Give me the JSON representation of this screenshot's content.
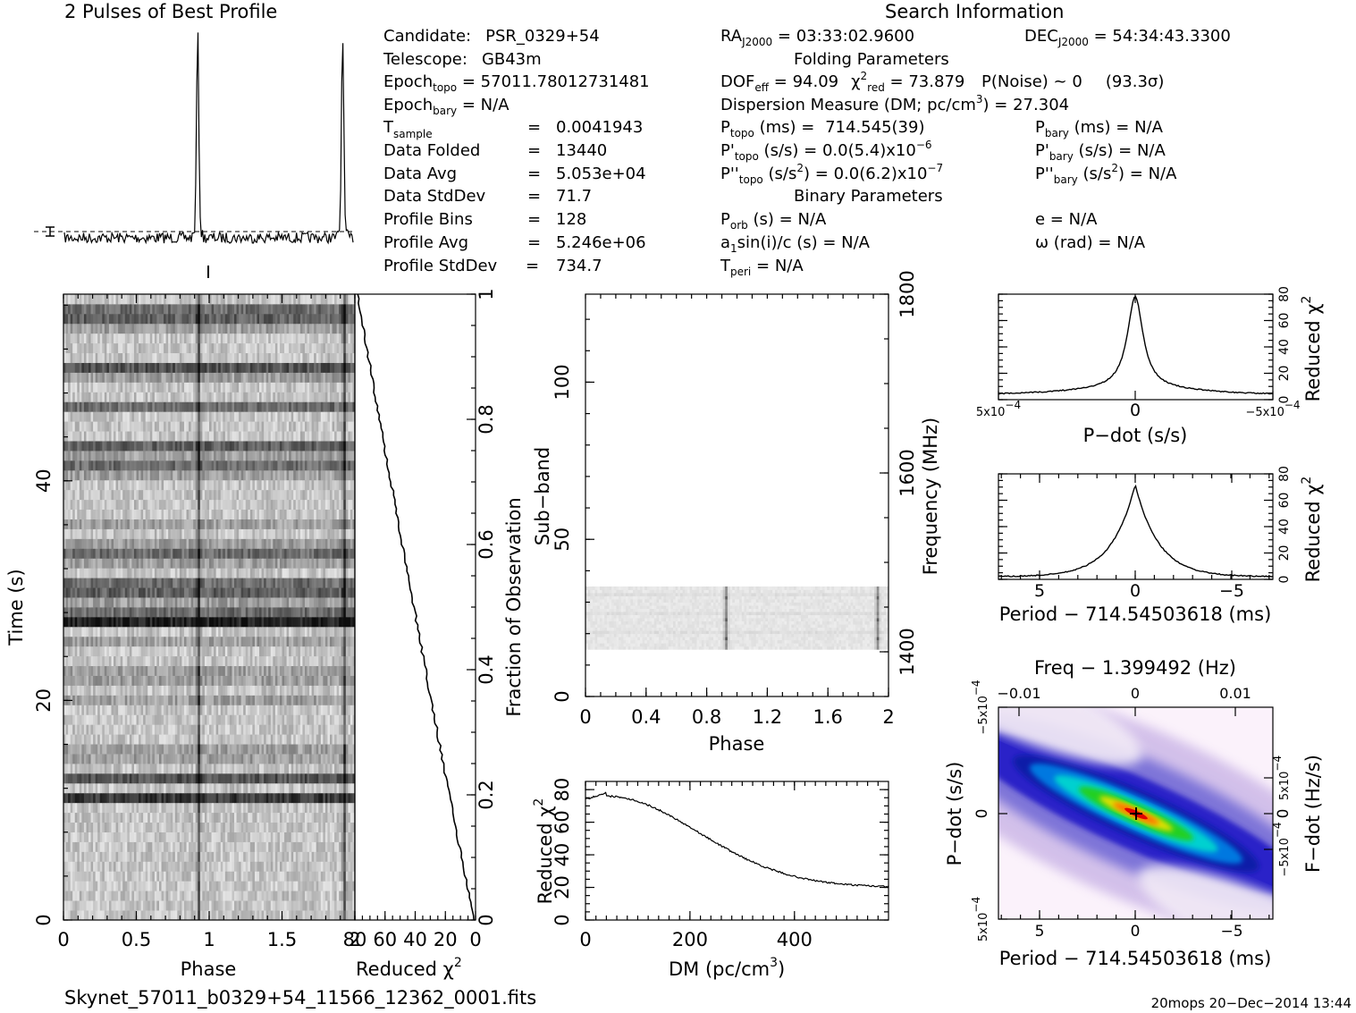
{
  "profile": {
    "title": "2 Pulses of Best Profile"
  },
  "info": {
    "title": "Search Information",
    "candidate_label": "Candidate:",
    "candidate": "PSR_0329+54",
    "telescope_label": "Telescope:",
    "telescope": "GB43m",
    "epoch_topo": "57011.78012731481",
    "epoch_bary": "N/A",
    "t_sample": "0.0041943",
    "data_folded": "13440",
    "data_avg": "5.053e+04",
    "data_stddev": "71.7",
    "profile_bins": "128",
    "profile_avg": "5.246e+06",
    "profile_stddev": "734.7",
    "ra": "03:33:02.9600",
    "dec": "54:34:43.3300",
    "folding_title": "Folding Parameters",
    "dof_eff": "94.09",
    "chi2_red": "73.879",
    "p_noise": "0",
    "sigma": "(93.3σ)",
    "dm": "27.304",
    "p_topo": "714.545(39)",
    "pd_topo": "0.0(5.4)x10",
    "pd_topo_exp": "−6",
    "pdd_topo": "0.0(6.2)x10",
    "pdd_topo_exp": "−7",
    "p_bary": "N/A",
    "pd_bary": "N/A",
    "pdd_bary": "N/A",
    "binary_title": "Binary Parameters",
    "p_orb": "N/A",
    "a1sini": "N/A",
    "t_peri": "N/A",
    "e": "N/A",
    "omega": "N/A"
  },
  "time_phase": {
    "xlabel": "Phase",
    "ylabel": "Time (s)",
    "xticks": [
      "0",
      "0.5",
      "1",
      "1.5",
      "2"
    ],
    "yticks": [
      "0",
      "20",
      "40"
    ],
    "xlim": [
      0,
      2
    ],
    "ylim": [
      0,
      57
    ],
    "pulse_phases": [
      0.92,
      1.92
    ]
  },
  "chi2_fraction": {
    "xlabel": "Reduced χ",
    "ylabel": "Fraction of Observation",
    "xticks": [
      "80",
      "60",
      "40",
      "20",
      "0"
    ],
    "yticks": [
      "0",
      "0.2",
      "0.4",
      "0.6",
      "0.8",
      "1"
    ],
    "xlim": [
      80,
      0
    ],
    "ylim": [
      0,
      1
    ]
  },
  "subband": {
    "xlabel": "Phase",
    "ylabel": "Sub−band",
    "y2label": "Frequency (MHz)",
    "xticks": [
      "0",
      "0.4",
      "0.8",
      "1.2",
      "1.6",
      "2"
    ],
    "yticks": [
      "0",
      "50",
      "100"
    ],
    "y2ticks": [
      "1400",
      "1600",
      "1800"
    ],
    "xlim": [
      0,
      2
    ],
    "ylim": [
      0,
      128
    ],
    "active_subbands": [
      15,
      35
    ]
  },
  "dm_curve": {
    "xlabel": "DM (pc/cm",
    "ylabel": "Reduced χ",
    "xticks": [
      "0",
      "200",
      "400"
    ],
    "yticks": [
      "0",
      "20",
      "40",
      "60",
      "80"
    ],
    "xlim": [
      0,
      580
    ],
    "ylim": [
      0,
      85
    ]
  },
  "pdot_curve": {
    "xlabel": "P−dot (s/s)",
    "ylabel": "Reduced χ",
    "xticks": [
      "5x10",
      "0",
      "−5x10"
    ],
    "xtick_exps": [
      "−4",
      "",
      "−4"
    ],
    "yticks": [
      "0",
      "20",
      "40",
      "60",
      "80"
    ],
    "ylim": [
      0,
      80
    ]
  },
  "period_curve": {
    "xlabel": "Period − 714.54503618 (ms)",
    "ylabel": "Reduced χ",
    "xticks": [
      "5",
      "0",
      "−5"
    ],
    "yticks": [
      "0",
      "20",
      "40",
      "60",
      "80"
    ],
    "ylim": [
      0,
      80
    ]
  },
  "ppdot": {
    "top_label": "Freq − 1.399492 (Hz)",
    "xlabel": "Period − 714.54503618 (ms)",
    "ylabel": "P−dot (s/s)",
    "y2label": "F−dot (Hz/s)",
    "xticks": [
      "5",
      "0",
      "−5"
    ],
    "top_ticks": [
      "−0.01",
      "0",
      "0.01"
    ],
    "yticks": [
      "5x10",
      "0",
      "−5x10"
    ],
    "ytick_exps": [
      "−4",
      "",
      "−4"
    ],
    "y2ticks": [
      "−5x10",
      "0",
      "5x10"
    ],
    "y2tick_exps": [
      "−4",
      "",
      "−4"
    ]
  },
  "footer": {
    "filename": "Skynet_57011_b0329+54_11566_12362_0001.fits",
    "stamp": "20mops 20−Dec−2014 13:44"
  }
}
